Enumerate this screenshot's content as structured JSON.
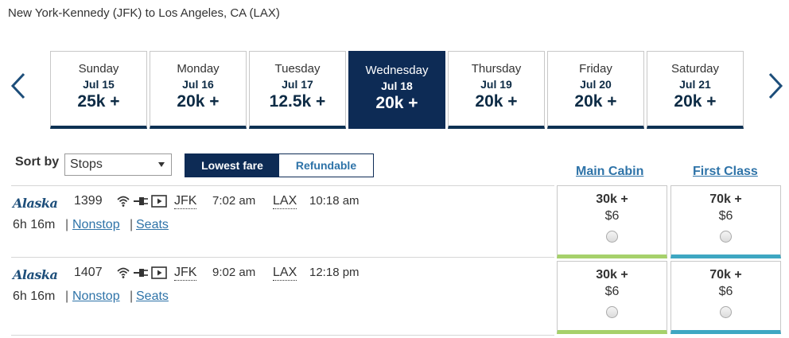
{
  "route": {
    "title": "New York-Kennedy (JFK) to Los Angeles, CA (LAX)"
  },
  "days": [
    {
      "day": "Sunday",
      "date": "Jul 15",
      "fare": "25k +"
    },
    {
      "day": "Monday",
      "date": "Jul 16",
      "fare": "20k +"
    },
    {
      "day": "Tuesday",
      "date": "Jul 17",
      "fare": "12.5k +"
    },
    {
      "day": "Wednesday",
      "date": "Jul 18",
      "fare": "20k +",
      "selected": true
    },
    {
      "day": "Thursday",
      "date": "Jul 19",
      "fare": "20k +"
    },
    {
      "day": "Friday",
      "date": "Jul 20",
      "fare": "20k +"
    },
    {
      "day": "Saturday",
      "date": "Jul 21",
      "fare": "20k +"
    }
  ],
  "sort": {
    "label": "Sort by",
    "selected": "Stops"
  },
  "fare_toggle": {
    "options": [
      "Lowest fare",
      "Refundable"
    ],
    "active": "Lowest fare"
  },
  "cabins": {
    "main": "Main Cabin",
    "first": "First Class"
  },
  "flights": [
    {
      "airline": "Alaska",
      "number": "1399",
      "origin": "JFK",
      "depart": "7:02 am",
      "destination": "LAX",
      "arrive": "10:18 am",
      "duration": "6h 16m",
      "stops": "Nonstop",
      "seats": "Seats",
      "main_miles": "30k +",
      "main_tax": "$6",
      "first_miles": "70k +",
      "first_tax": "$6",
      "amenity_icons": [
        "wifi-icon",
        "power-plug-icon",
        "video-screen-icon"
      ]
    },
    {
      "airline": "Alaska",
      "number": "1407",
      "origin": "JFK",
      "depart": "9:02 am",
      "destination": "LAX",
      "arrive": "12:18 pm",
      "duration": "6h 16m",
      "stops": "Nonstop",
      "seats": "Seats",
      "main_miles": "30k +",
      "main_tax": "$6",
      "first_miles": "70k +",
      "first_tax": "$6",
      "amenity_icons": [
        "wifi-icon",
        "power-plug-icon",
        "video-screen-icon"
      ]
    }
  ],
  "colors": {
    "navy": "#0d2b55",
    "link": "#2e73a8",
    "main_cabin_accent": "#a6d16b",
    "first_class_accent": "#3ea7c2"
  }
}
